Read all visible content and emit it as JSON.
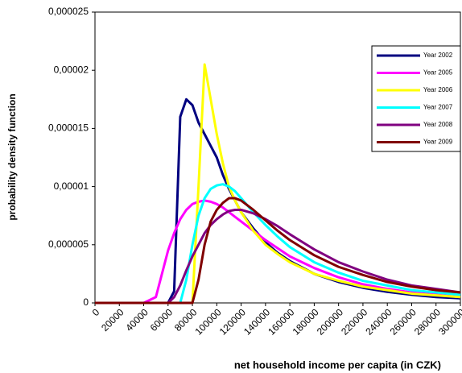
{
  "chart_data": {
    "type": "line",
    "xlabel": "net household income per capita (in CZK)",
    "ylabel": "probability density function",
    "x": [
      0,
      40000,
      50000,
      55000,
      60000,
      65000,
      70000,
      75000,
      80000,
      85000,
      90000,
      95000,
      100000,
      105000,
      110000,
      115000,
      120000,
      130000,
      140000,
      150000,
      160000,
      180000,
      200000,
      220000,
      240000,
      260000,
      280000,
      300000
    ],
    "series": [
      {
        "name": "Year 2002",
        "color": "#000080",
        "values": [
          0,
          0,
          0,
          0,
          0,
          1e-06,
          1.6e-05,
          1.75e-05,
          1.7e-05,
          1.55e-05,
          1.45e-05,
          1.35e-05,
          1.25e-05,
          1.1e-05,
          9.8e-06,
          8.8e-06,
          7.8e-06,
          6.4e-06,
          5.2e-06,
          4.3e-06,
          3.6e-06,
          2.5e-06,
          1.8e-06,
          1.3e-06,
          9.5e-07,
          7e-07,
          5e-07,
          4e-07
        ]
      },
      {
        "name": "Year 2005",
        "color": "#ff00ff",
        "values": [
          0,
          0,
          5e-07,
          2.5e-06,
          4.5e-06,
          6e-06,
          7.2e-06,
          8e-06,
          8.5e-06,
          8.7e-06,
          8.8e-06,
          8.7e-06,
          8.5e-06,
          8.2e-06,
          7.8e-06,
          7.4e-06,
          7e-06,
          6.2e-06,
          5.4e-06,
          4.7e-06,
          4e-06,
          3e-06,
          2.2e-06,
          1.6e-06,
          1.2e-06,
          9e-07,
          7e-07,
          5e-07
        ]
      },
      {
        "name": "Year 2006",
        "color": "#ffff00",
        "values": [
          0,
          0,
          0,
          0,
          0,
          0,
          0,
          0,
          0,
          1e-05,
          2.05e-05,
          1.75e-05,
          1.45e-05,
          1.2e-05,
          1e-05,
          8.8e-06,
          7.8e-06,
          6.2e-06,
          5e-06,
          4.2e-06,
          3.5e-06,
          2.5e-06,
          1.9e-06,
          1.4e-06,
          1.1e-06,
          8e-07,
          6.5e-07,
          5e-07
        ]
      },
      {
        "name": "Year 2007",
        "color": "#00ffff",
        "values": [
          0,
          0,
          0,
          0,
          0,
          0,
          0,
          2e-06,
          5e-06,
          7.5e-06,
          9e-06,
          9.8e-06,
          1.01e-05,
          1.02e-05,
          1e-05,
          9.6e-06,
          9e-06,
          7.8e-06,
          6.7e-06,
          5.7e-06,
          4.8e-06,
          3.5e-06,
          2.6e-06,
          1.9e-06,
          1.5e-06,
          1.1e-06,
          9e-07,
          7e-07
        ]
      },
      {
        "name": "Year 2008",
        "color": "#800080",
        "values": [
          0,
          0,
          0,
          0,
          0,
          5e-07,
          1.5e-06,
          2.8e-06,
          4e-06,
          5e-06,
          6e-06,
          6.7e-06,
          7.2e-06,
          7.6e-06,
          7.9e-06,
          8e-06,
          8e-06,
          7.7e-06,
          7.2e-06,
          6.6e-06,
          5.9e-06,
          4.6e-06,
          3.5e-06,
          2.7e-06,
          2e-06,
          1.5e-06,
          1.2e-06,
          9e-07
        ]
      },
      {
        "name": "Year 2009",
        "color": "#800000",
        "values": [
          0,
          0,
          0,
          0,
          0,
          0,
          0,
          0,
          0,
          2e-06,
          5e-06,
          7e-06,
          8e-06,
          8.6e-06,
          9e-06,
          9e-06,
          8.8e-06,
          8e-06,
          7.1e-06,
          6.2e-06,
          5.4e-06,
          4.1e-06,
          3.1e-06,
          2.4e-06,
          1.8e-06,
          1.4e-06,
          1.1e-06,
          9e-07
        ]
      }
    ],
    "xlim": [
      0,
      300000
    ],
    "xticks": [
      0,
      20000,
      40000,
      60000,
      80000,
      100000,
      120000,
      140000,
      160000,
      180000,
      200000,
      220000,
      240000,
      260000,
      280000,
      300000
    ],
    "ylim": [
      0,
      2.5e-05
    ],
    "yticks": [
      0,
      {
        "value": 5e-06,
        "label": "0,000005"
      },
      {
        "value": 1e-05,
        "label": "0,00001"
      },
      {
        "value": 1.5e-05,
        "label": "0,000015"
      },
      {
        "value": 2e-05,
        "label": "0,00002"
      },
      {
        "value": 2.5e-05,
        "label": "0,000025"
      }
    ],
    "legend": "upper right"
  }
}
